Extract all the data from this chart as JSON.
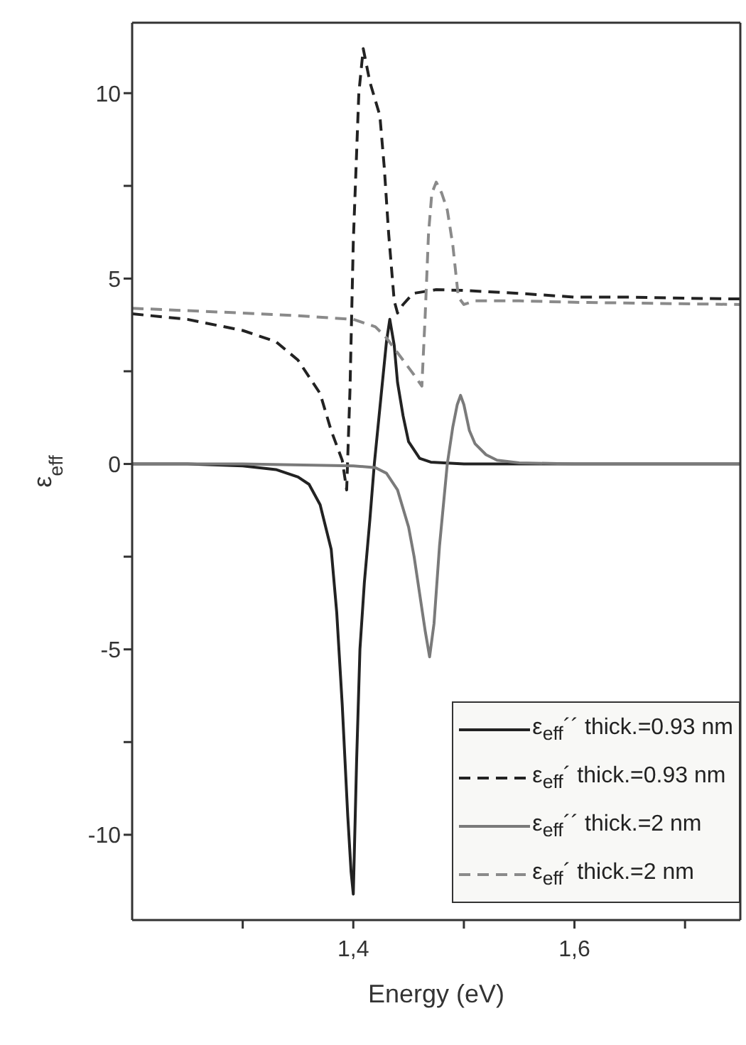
{
  "chart_data": {
    "type": "line",
    "xlabel": "Energy (eV)",
    "ylabel": "ε$_{eff}$",
    "xlim": [
      1.2,
      1.75
    ],
    "xticks": [
      {
        "value": 1.3,
        "label": null
      },
      {
        "value": 1.4,
        "label": "1,4"
      },
      {
        "value": 1.5,
        "label": null
      },
      {
        "value": 1.6,
        "label": "1,6"
      },
      {
        "value": 1.7,
        "label": null
      }
    ],
    "ylim": [
      -12.3,
      11.9
    ],
    "yticks": [
      -10,
      {
        "value": -7.5,
        "label": null
      },
      -5,
      {
        "value": -2.5,
        "label": null
      },
      0,
      {
        "value": 2.5,
        "label": null
      },
      5,
      {
        "value": 7.5,
        "label": null
      },
      10
    ],
    "grid": false,
    "legend": "bottom right",
    "marker": "none",
    "series": [
      {
        "name": "ε$_{eff}$´´ thick.=0.93 nm",
        "color": "#222222",
        "line_style": "solid",
        "x": [
          1.2,
          1.25,
          1.3,
          1.33,
          1.35,
          1.36,
          1.37,
          1.38,
          1.385,
          1.39,
          1.395,
          1.398,
          1.4,
          1.403,
          1.406,
          1.41,
          1.415,
          1.419,
          1.425,
          1.43,
          1.433,
          1.437,
          1.44,
          1.445,
          1.45,
          1.46,
          1.47,
          1.5,
          1.6,
          1.75
        ],
        "values": [
          0,
          0,
          -0.05,
          -0.15,
          -0.35,
          -0.55,
          -1.1,
          -2.3,
          -4,
          -6.5,
          -9.5,
          -11,
          -11.6,
          -8,
          -5,
          -3.2,
          -1.5,
          0,
          1.8,
          3.3,
          3.9,
          3.2,
          2.2,
          1.3,
          0.6,
          0.15,
          0.05,
          0,
          0,
          0
        ]
      },
      {
        "name": "ε$_{eff}$´ thick.=0.93 nm",
        "color": "#222222",
        "line_style": "dashed",
        "x": [
          1.2,
          1.25,
          1.3,
          1.33,
          1.35,
          1.37,
          1.38,
          1.39,
          1.394,
          1.397,
          1.4,
          1.405,
          1.409,
          1.415,
          1.424,
          1.428,
          1.432,
          1.437,
          1.44,
          1.445,
          1.454,
          1.475,
          1.5,
          1.55,
          1.6,
          1.65,
          1.7,
          1.75
        ],
        "values": [
          4.05,
          3.9,
          3.6,
          3.3,
          2.8,
          1.9,
          0.9,
          0.1,
          -0.7,
          2,
          6,
          10,
          11.2,
          10.3,
          9.4,
          8,
          6.2,
          4.4,
          4.07,
          4.3,
          4.6,
          4.7,
          4.68,
          4.6,
          4.5,
          4.5,
          4.47,
          4.45
        ]
      },
      {
        "name": "ε$_{eff}$´´ thick.=2 nm",
        "color": "#7a7a7a",
        "line_style": "solid",
        "x": [
          1.2,
          1.3,
          1.4,
          1.42,
          1.43,
          1.44,
          1.45,
          1.455,
          1.46,
          1.465,
          1.469,
          1.473,
          1.478,
          1.485,
          1.49,
          1.494,
          1.497,
          1.5,
          1.505,
          1.51,
          1.52,
          1.53,
          1.55,
          1.6,
          1.75
        ],
        "values": [
          0,
          0,
          -0.05,
          -0.1,
          -0.25,
          -0.7,
          -1.7,
          -2.5,
          -3.5,
          -4.5,
          -5.2,
          -4.3,
          -2.2,
          0,
          1,
          1.6,
          1.85,
          1.6,
          0.9,
          0.55,
          0.25,
          0.1,
          0.03,
          0,
          0
        ]
      },
      {
        "name": "ε$_{eff}$´ thick.=2 nm",
        "color": "#8a8a8a",
        "line_style": "dashed",
        "x": [
          1.2,
          1.3,
          1.35,
          1.4,
          1.42,
          1.43,
          1.445,
          1.455,
          1.462,
          1.465,
          1.468,
          1.471,
          1.475,
          1.48,
          1.485,
          1.49,
          1.495,
          1.5,
          1.51,
          1.55,
          1.6,
          1.75
        ],
        "values": [
          4.2,
          4.07,
          4.0,
          3.9,
          3.7,
          3.4,
          2.8,
          2.4,
          2.1,
          4,
          6.2,
          7.3,
          7.6,
          7.3,
          6.85,
          5.9,
          4.5,
          4.3,
          4.4,
          4.4,
          4.36,
          4.3
        ]
      }
    ]
  }
}
